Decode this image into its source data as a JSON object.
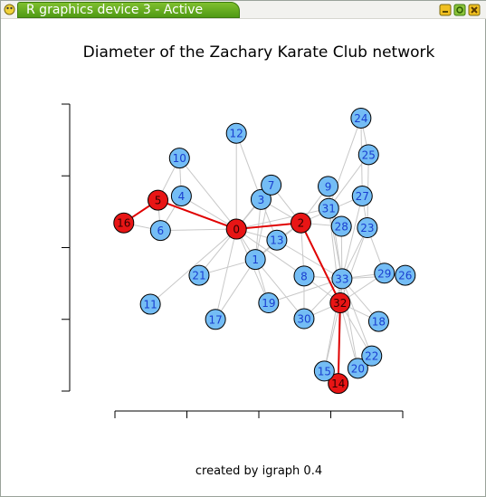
{
  "window": {
    "title": "R graphics device 3 - Active",
    "colors": {
      "tab": "#5aa61c",
      "node_default": "#74bdf5",
      "node_highlight": "#e81515",
      "edge_default": "#c8c8c8",
      "edge_highlight": "#e00000"
    },
    "icons": [
      "app-icon",
      "minimize-icon",
      "maximize-icon",
      "close-icon"
    ]
  },
  "plot": {
    "title": "Diameter of the Zachary Karate Club network",
    "subtitle": "created by igraph 0.4"
  },
  "chart_data": {
    "type": "network",
    "title": "Diameter of the Zachary Karate Club network",
    "subtitle": "created by igraph 0.4",
    "nodes": [
      {
        "id": "0",
        "x": -0.08,
        "y": 0.25,
        "highlight": true
      },
      {
        "id": "1",
        "x": 0.22,
        "y": -0.19,
        "highlight": false
      },
      {
        "id": "2",
        "x": 0.94,
        "y": 0.34,
        "highlight": true
      },
      {
        "id": "3",
        "x": 0.31,
        "y": 0.68,
        "highlight": false
      },
      {
        "id": "4",
        "x": -0.95,
        "y": 0.73,
        "highlight": false
      },
      {
        "id": "5",
        "x": -1.32,
        "y": 0.67,
        "highlight": true
      },
      {
        "id": "6",
        "x": -1.28,
        "y": 0.23,
        "highlight": false
      },
      {
        "id": "7",
        "x": 0.47,
        "y": 0.89,
        "highlight": false
      },
      {
        "id": "8",
        "x": 0.99,
        "y": -0.43,
        "highlight": false
      },
      {
        "id": "9",
        "x": 1.37,
        "y": 0.87,
        "highlight": false
      },
      {
        "id": "10",
        "x": -0.98,
        "y": 1.28,
        "highlight": false
      },
      {
        "id": "11",
        "x": -1.44,
        "y": -0.84,
        "highlight": false
      },
      {
        "id": "12",
        "x": -0.08,
        "y": 1.64,
        "highlight": false
      },
      {
        "id": "13",
        "x": 0.56,
        "y": 0.09,
        "highlight": false
      },
      {
        "id": "14",
        "x": 1.53,
        "y": -1.99,
        "highlight": true
      },
      {
        "id": "15",
        "x": 1.31,
        "y": -1.81,
        "highlight": false
      },
      {
        "id": "16",
        "x": -1.86,
        "y": 0.34,
        "highlight": true
      },
      {
        "id": "17",
        "x": -0.41,
        "y": -1.06,
        "highlight": false
      },
      {
        "id": "18",
        "x": 2.17,
        "y": -1.09,
        "highlight": false
      },
      {
        "id": "19",
        "x": 0.43,
        "y": -0.82,
        "highlight": false
      },
      {
        "id": "20",
        "x": 1.84,
        "y": -1.77,
        "highlight": false
      },
      {
        "id": "21",
        "x": -0.67,
        "y": -0.42,
        "highlight": false
      },
      {
        "id": "22",
        "x": 2.06,
        "y": -1.59,
        "highlight": false
      },
      {
        "id": "23",
        "x": 1.99,
        "y": 0.27,
        "highlight": false
      },
      {
        "id": "24",
        "x": 1.89,
        "y": 1.86,
        "highlight": false
      },
      {
        "id": "25",
        "x": 2.01,
        "y": 1.33,
        "highlight": false
      },
      {
        "id": "26",
        "x": 2.59,
        "y": -0.42,
        "highlight": false
      },
      {
        "id": "27",
        "x": 1.91,
        "y": 0.73,
        "highlight": false
      },
      {
        "id": "28",
        "x": 1.58,
        "y": 0.29,
        "highlight": false
      },
      {
        "id": "29",
        "x": 2.26,
        "y": -0.39,
        "highlight": false
      },
      {
        "id": "30",
        "x": 0.99,
        "y": -1.05,
        "highlight": false
      },
      {
        "id": "31",
        "x": 1.38,
        "y": 0.55,
        "highlight": false
      },
      {
        "id": "32",
        "x": 1.56,
        "y": -0.82,
        "highlight": true
      },
      {
        "id": "33",
        "x": 1.59,
        "y": -0.47,
        "highlight": false
      }
    ],
    "edges": [
      [
        "0",
        "1"
      ],
      [
        "0",
        "2"
      ],
      [
        "0",
        "3"
      ],
      [
        "0",
        "4"
      ],
      [
        "0",
        "5"
      ],
      [
        "0",
        "6"
      ],
      [
        "0",
        "7"
      ],
      [
        "0",
        "8"
      ],
      [
        "0",
        "10"
      ],
      [
        "0",
        "11"
      ],
      [
        "0",
        "12"
      ],
      [
        "0",
        "13"
      ],
      [
        "0",
        "17"
      ],
      [
        "0",
        "19"
      ],
      [
        "0",
        "21"
      ],
      [
        "0",
        "31"
      ],
      [
        "1",
        "2"
      ],
      [
        "1",
        "3"
      ],
      [
        "1",
        "7"
      ],
      [
        "1",
        "13"
      ],
      [
        "1",
        "17"
      ],
      [
        "1",
        "19"
      ],
      [
        "1",
        "21"
      ],
      [
        "1",
        "30"
      ],
      [
        "2",
        "3"
      ],
      [
        "2",
        "7"
      ],
      [
        "2",
        "8"
      ],
      [
        "2",
        "9"
      ],
      [
        "2",
        "13"
      ],
      [
        "2",
        "27"
      ],
      [
        "2",
        "28"
      ],
      [
        "2",
        "32"
      ],
      [
        "3",
        "7"
      ],
      [
        "3",
        "12"
      ],
      [
        "3",
        "13"
      ],
      [
        "4",
        "6"
      ],
      [
        "4",
        "10"
      ],
      [
        "5",
        "6"
      ],
      [
        "5",
        "10"
      ],
      [
        "5",
        "16"
      ],
      [
        "6",
        "16"
      ],
      [
        "8",
        "30"
      ],
      [
        "8",
        "32"
      ],
      [
        "8",
        "33"
      ],
      [
        "9",
        "33"
      ],
      [
        "13",
        "33"
      ],
      [
        "14",
        "32"
      ],
      [
        "14",
        "33"
      ],
      [
        "15",
        "32"
      ],
      [
        "15",
        "33"
      ],
      [
        "18",
        "32"
      ],
      [
        "18",
        "33"
      ],
      [
        "19",
        "33"
      ],
      [
        "20",
        "32"
      ],
      [
        "20",
        "33"
      ],
      [
        "22",
        "32"
      ],
      [
        "22",
        "33"
      ],
      [
        "23",
        "25"
      ],
      [
        "23",
        "27"
      ],
      [
        "23",
        "29"
      ],
      [
        "23",
        "32"
      ],
      [
        "23",
        "33"
      ],
      [
        "24",
        "25"
      ],
      [
        "24",
        "27"
      ],
      [
        "24",
        "31"
      ],
      [
        "25",
        "31"
      ],
      [
        "26",
        "29"
      ],
      [
        "26",
        "33"
      ],
      [
        "27",
        "33"
      ],
      [
        "28",
        "31"
      ],
      [
        "28",
        "33"
      ],
      [
        "29",
        "32"
      ],
      [
        "29",
        "33"
      ],
      [
        "30",
        "32"
      ],
      [
        "30",
        "33"
      ],
      [
        "31",
        "32"
      ],
      [
        "31",
        "33"
      ],
      [
        "32",
        "33"
      ]
    ],
    "diameter_path": [
      "16",
      "5",
      "0",
      "2",
      "32",
      "14"
    ],
    "axes": {
      "xlim": [
        -2,
        2.55
      ],
      "ylim": [
        -2.1,
        2.05
      ],
      "x_ticks": 5,
      "y_ticks": 5
    }
  }
}
